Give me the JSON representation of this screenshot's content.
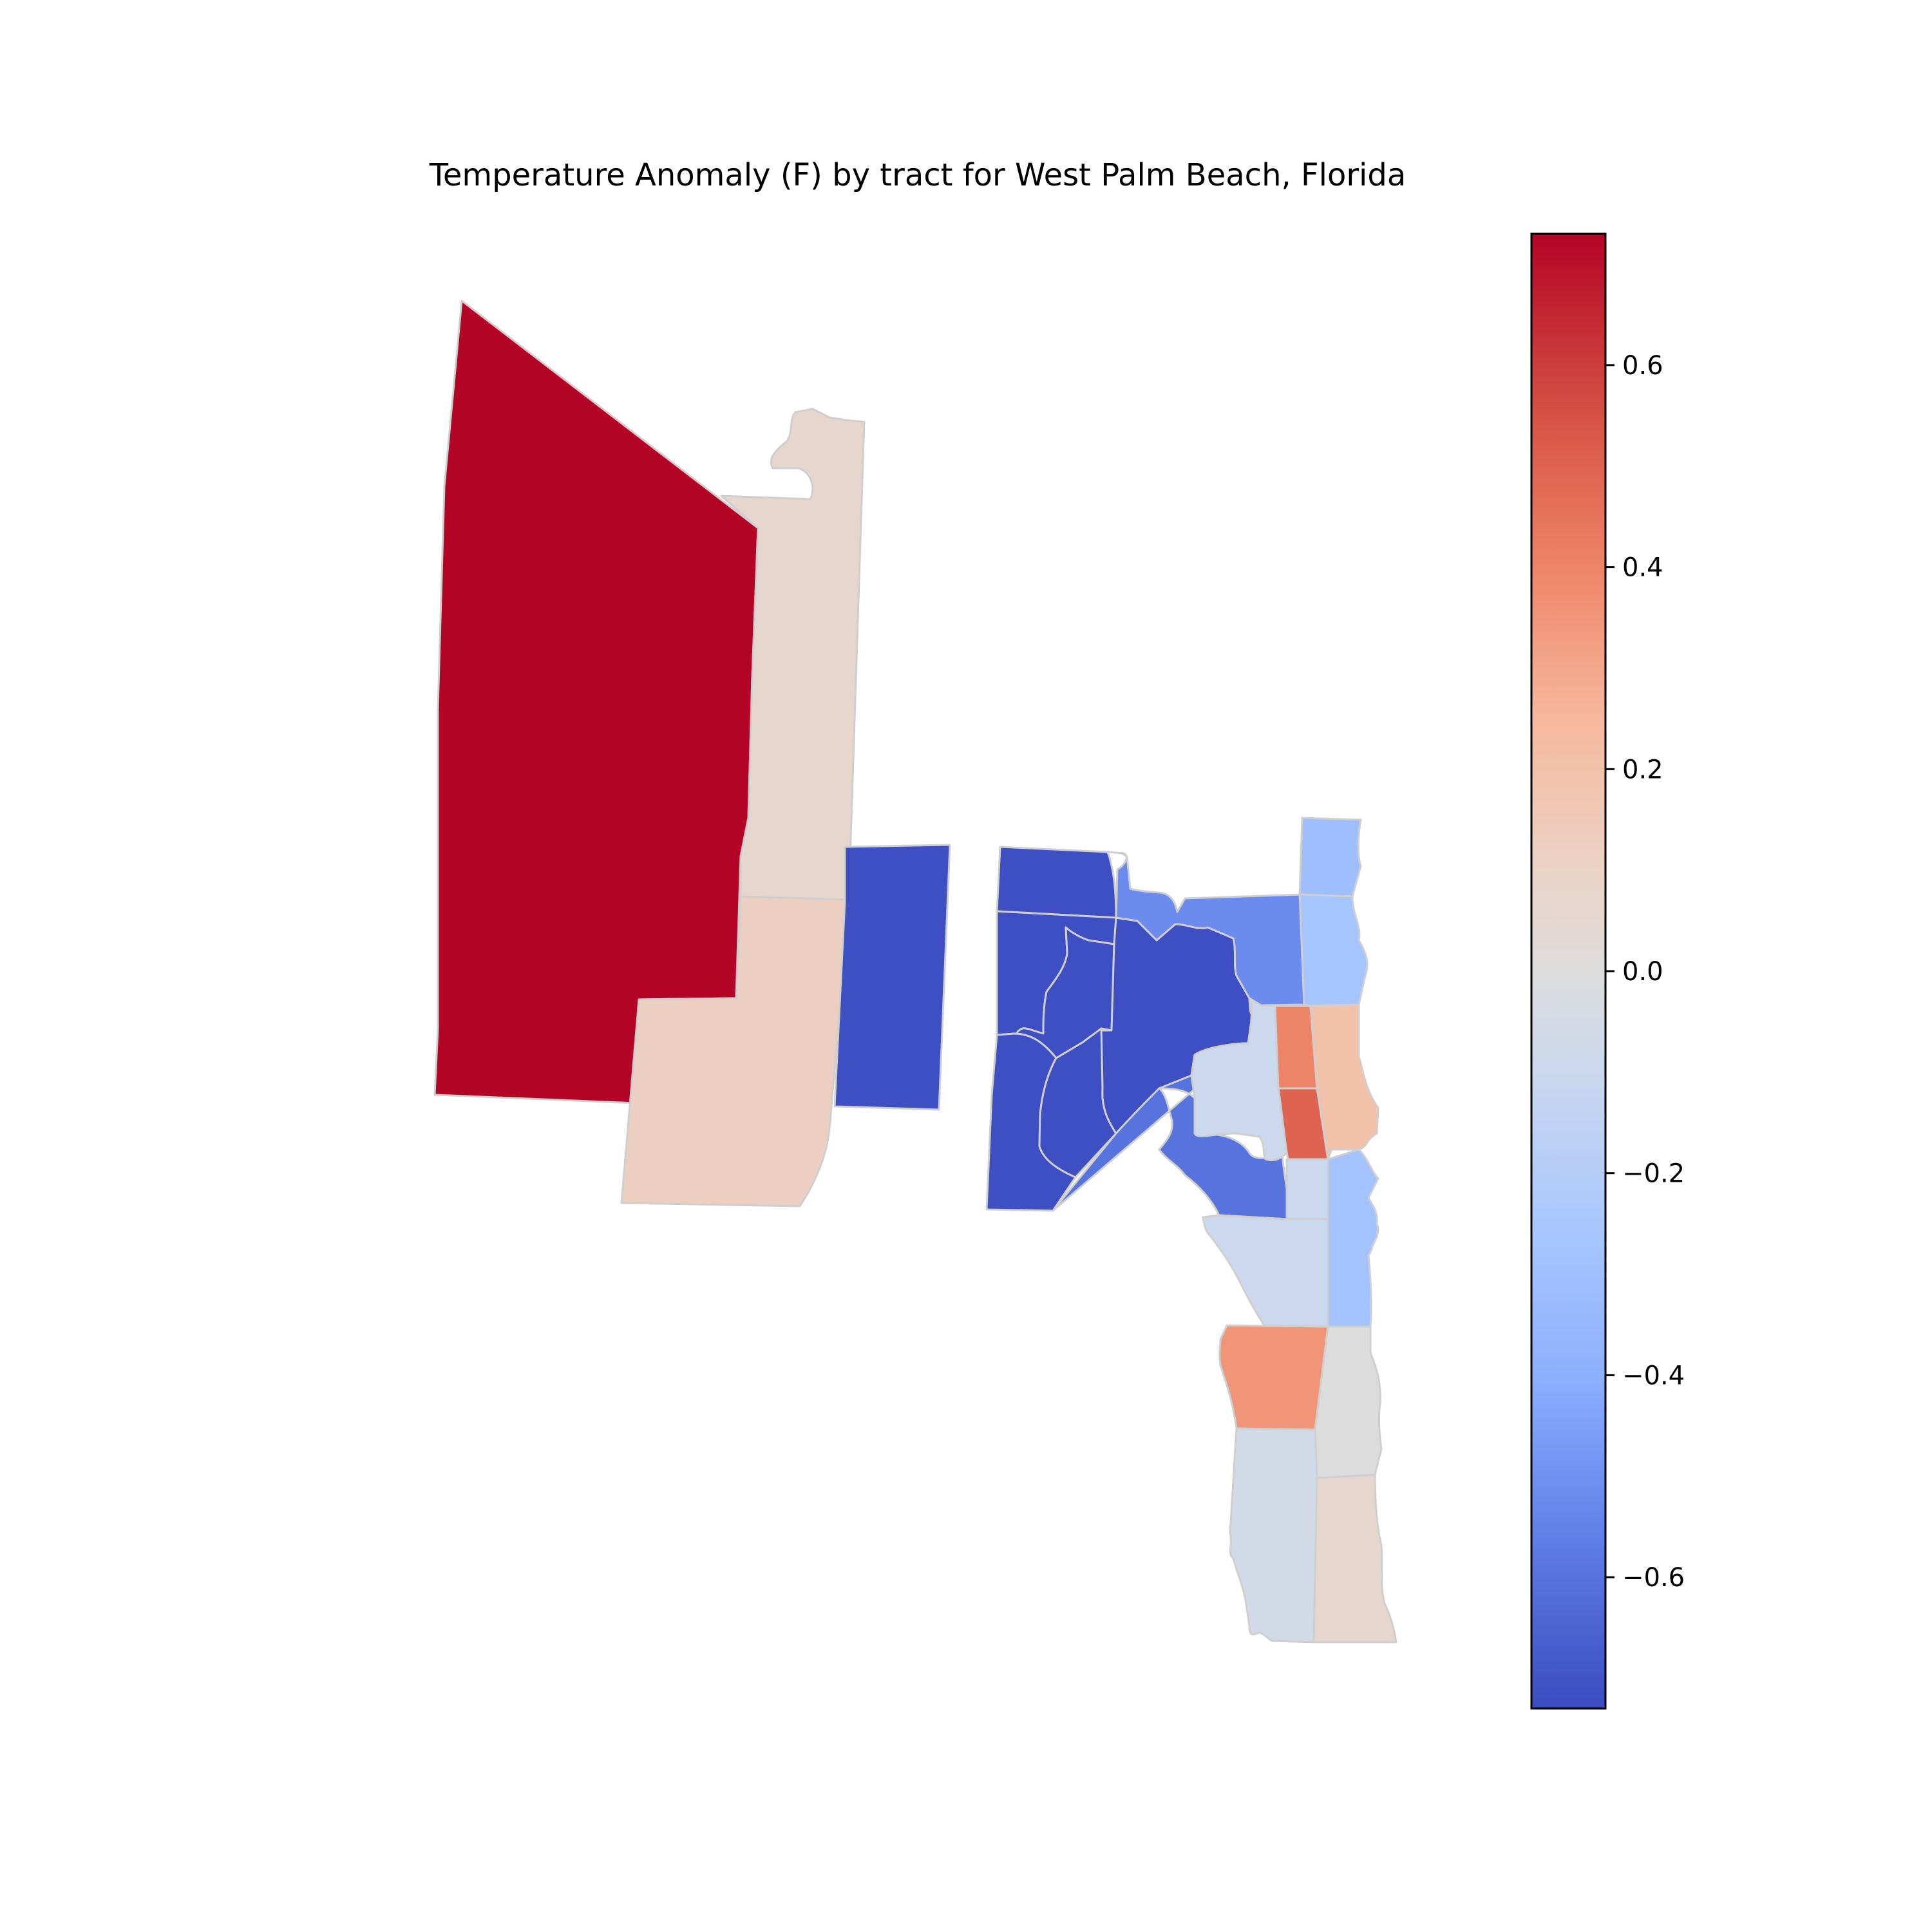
{
  "map": {
    "title": "Temperature Anomaly (F) by tract for West Palm Beach, Florida",
    "colormap": "coolwarm",
    "tract_border_color": "#cfcfcf"
  },
  "colorbar": {
    "range": [
      -0.73,
      0.73
    ],
    "ticks": [
      {
        "value": 0.6,
        "label": "0.6"
      },
      {
        "value": 0.4,
        "label": "0.4"
      },
      {
        "value": 0.2,
        "label": "0.2"
      },
      {
        "value": 0.0,
        "label": "0.0"
      },
      {
        "value": -0.2,
        "label": "−0.2"
      },
      {
        "value": -0.4,
        "label": "−0.4"
      },
      {
        "value": -0.6,
        "label": "−0.6"
      }
    ],
    "gradient_stops": [
      {
        "value": 0.73,
        "color": "#b40426"
      },
      {
        "value": 0.55,
        "color": "#d65244"
      },
      {
        "value": 0.4,
        "color": "#ee8468"
      },
      {
        "value": 0.25,
        "color": "#f6b89c"
      },
      {
        "value": 0.1,
        "color": "#ebd3c6"
      },
      {
        "value": 0.0,
        "color": "#dddcdc"
      },
      {
        "value": -0.1,
        "color": "#cbd8ee"
      },
      {
        "value": -0.25,
        "color": "#aac7fd"
      },
      {
        "value": -0.4,
        "color": "#8db0fe"
      },
      {
        "value": -0.55,
        "color": "#6282ea"
      },
      {
        "value": -0.73,
        "color": "#3b4cc0"
      }
    ]
  },
  "tracts": [
    {
      "id": "west-large",
      "anomaly": 0.73
    },
    {
      "id": "west-strip-north",
      "anomaly": 0.07
    },
    {
      "id": "west-south",
      "anomaly": 0.12
    },
    {
      "id": "central-block",
      "anomaly": -0.72
    },
    {
      "id": "east-nw",
      "anomaly": -0.72
    },
    {
      "id": "east-w1",
      "anomaly": -0.72
    },
    {
      "id": "east-w2",
      "anomaly": -0.72
    },
    {
      "id": "east-w3",
      "anomaly": -0.72
    },
    {
      "id": "east-center",
      "anomaly": -0.72
    },
    {
      "id": "east-sw",
      "anomaly": -0.72
    },
    {
      "id": "east-north-band",
      "anomaly": -0.52
    },
    {
      "id": "east-se",
      "anomaly": -0.6
    },
    {
      "id": "east-lake",
      "anomaly": -0.1
    },
    {
      "id": "ne-top",
      "anomaly": -0.31
    },
    {
      "id": "ne-2",
      "anomaly": -0.27
    },
    {
      "id": "ne-red1",
      "anomaly": 0.4
    },
    {
      "id": "ne-red2",
      "anomaly": 0.5
    },
    {
      "id": "ne-salmon",
      "anomaly": 0.2
    },
    {
      "id": "mid-gray",
      "anomaly": -0.1
    },
    {
      "id": "coast-blue",
      "anomaly": -0.28
    },
    {
      "id": "south-big-gray",
      "anomaly": -0.1
    },
    {
      "id": "south-orange",
      "anomaly": 0.35
    },
    {
      "id": "south-gray-east",
      "anomaly": 0.0
    },
    {
      "id": "south-sw",
      "anomaly": -0.06
    },
    {
      "id": "south-se",
      "anomaly": 0.07
    }
  ]
}
